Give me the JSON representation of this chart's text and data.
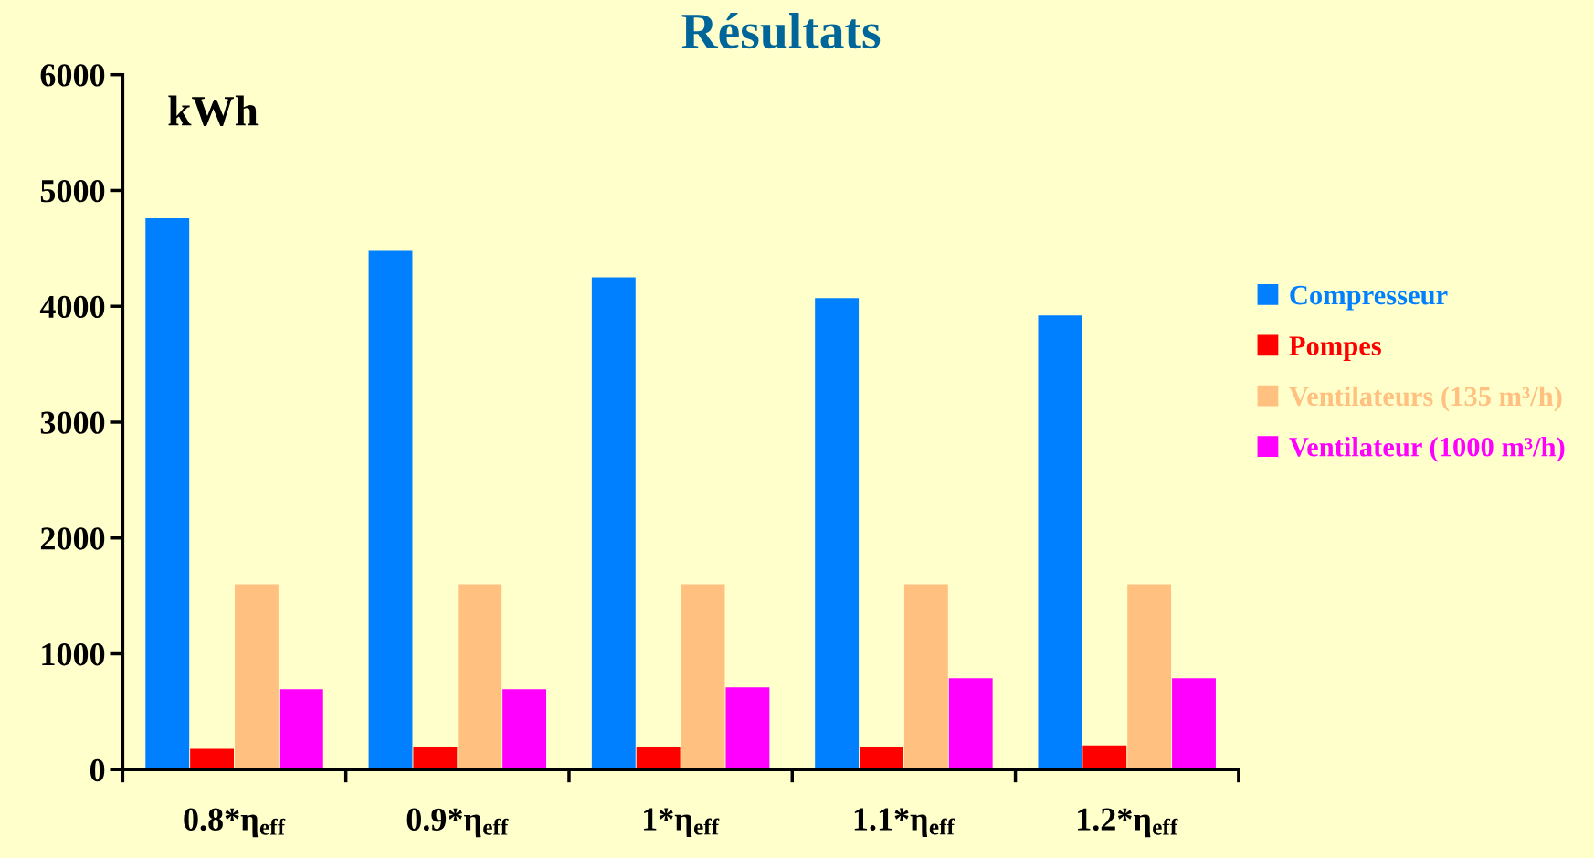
{
  "chart_data": {
    "type": "bar",
    "title": "Résultats",
    "ylabel": "kWh",
    "categories": [
      "0.8*η$_{eff}$",
      "0.9*η$_{eff}$",
      "1*η$_{eff}$",
      "1.1*η$_{eff}$",
      "1.2*η$_{eff}$"
    ],
    "series": [
      {
        "name": "Compresseur",
        "color": "#0080ff",
        "values": [
          4760,
          4480,
          4250,
          4070,
          3920
        ]
      },
      {
        "name": "Pompes",
        "color": "#ff0000",
        "values": [
          180,
          195,
          195,
          195,
          210
        ]
      },
      {
        "name": "Ventilateurs (135 m³/h)",
        "color": "#ffc080",
        "values": [
          1600,
          1600,
          1600,
          1600,
          1600
        ]
      },
      {
        "name": "Ventilateur (1000 m³/h)",
        "color": "#ff00ff",
        "values": [
          695,
          695,
          710,
          790,
          790
        ]
      }
    ],
    "ylim": [
      0,
      6000
    ],
    "yticks": [
      0,
      1000,
      2000,
      3000,
      4000,
      5000,
      6000
    ],
    "grid": false,
    "legend": "right"
  }
}
